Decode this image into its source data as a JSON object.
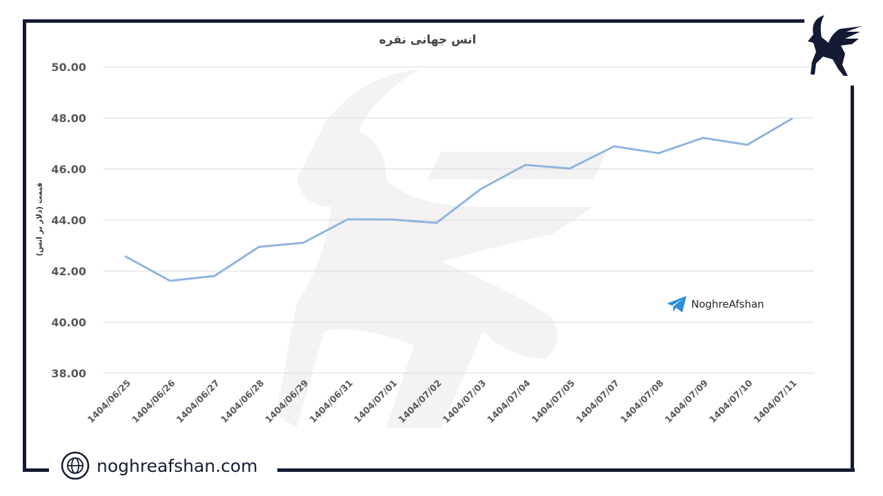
{
  "chart_data": {
    "type": "line",
    "title": "انس جهانی نقره",
    "ylabel": "قیمت (دلار بر انس)",
    "xlabel": "",
    "ylim": [
      38,
      50
    ],
    "yticks": [
      "38.00",
      "40.00",
      "42.00",
      "44.00",
      "46.00",
      "48.00",
      "50.00"
    ],
    "grid": true,
    "categories": [
      "1404/06/25",
      "1404/06/26",
      "1404/06/27",
      "1404/06/28",
      "1404/06/29",
      "1404/06/31",
      "1404/07/01",
      "1404/07/02",
      "1404/07/03",
      "1404/07/04",
      "1404/07/05",
      "1404/07/07",
      "1404/07/08",
      "1404/07/09",
      "1404/07/10",
      "1404/07/11"
    ],
    "values": [
      42.57,
      41.62,
      41.81,
      42.95,
      43.11,
      44.03,
      44.02,
      43.89,
      45.22,
      46.16,
      46.02,
      46.89,
      46.62,
      47.22,
      46.95,
      47.97
    ],
    "line_color": "#8fb3e0"
  },
  "watermark": {
    "telegram_handle": "NoghreAfshan",
    "icon": "telegram-icon"
  },
  "footer": {
    "website": "noghreafshan.com",
    "icon": "globe-icon"
  },
  "brand": {
    "logo": "winged-goat-logo",
    "color": "#141a33"
  }
}
